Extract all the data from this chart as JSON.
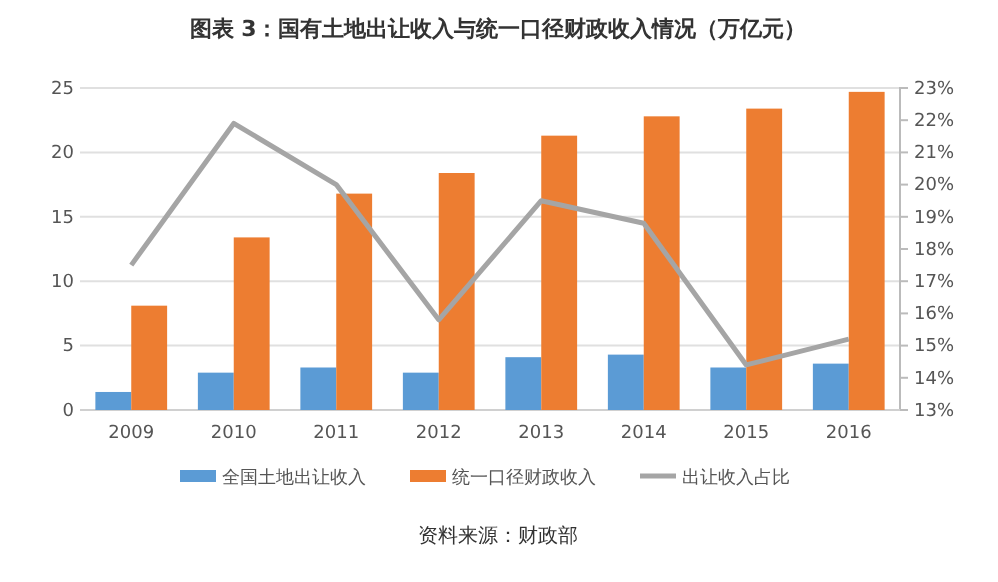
{
  "chart_data": {
    "type": "bar",
    "title": "图表 3：国有土地出让收入与统一口径财政收入情况（万亿元）",
    "categories": [
      "2009",
      "2010",
      "2011",
      "2012",
      "2013",
      "2014",
      "2015",
      "2016"
    ],
    "series": [
      {
        "name": "全国土地出让收入",
        "color": "#5b9bd5",
        "values": [
          1.4,
          2.9,
          3.3,
          2.9,
          4.1,
          4.3,
          3.3,
          3.6
        ]
      },
      {
        "name": "统一口径财政收入",
        "color": "#ed7d31",
        "values": [
          8.1,
          13.4,
          16.8,
          18.4,
          21.3,
          22.8,
          23.4,
          24.7
        ]
      },
      {
        "name": "出让收入占比",
        "type": "line",
        "axis": "y2",
        "color": "#a5a5a5",
        "values": [
          17.5,
          21.9,
          20.0,
          15.8,
          19.5,
          18.8,
          14.4,
          15.2
        ]
      }
    ],
    "ylim": [
      0,
      25
    ],
    "yticks": [
      0,
      5,
      10,
      15,
      20,
      25
    ],
    "y2lim": [
      13,
      23
    ],
    "y2ticks": [
      {
        "value": 13,
        "label": "13%"
      },
      {
        "value": 14,
        "label": "14%"
      },
      {
        "value": 15,
        "label": "15%"
      },
      {
        "value": 16,
        "label": "16%"
      },
      {
        "value": 17,
        "label": "17%"
      },
      {
        "value": 18,
        "label": "18%"
      },
      {
        "value": 19,
        "label": "19%"
      },
      {
        "value": 20,
        "label": "20%"
      },
      {
        "value": 21,
        "label": "21%"
      },
      {
        "value": 22,
        "label": "22%"
      },
      {
        "value": 23,
        "label": "23%"
      }
    ],
    "grid": "y",
    "legend": "bottom",
    "marker": "none",
    "line_style": "solid",
    "annotations": [
      "资料来源：财政部"
    ]
  }
}
